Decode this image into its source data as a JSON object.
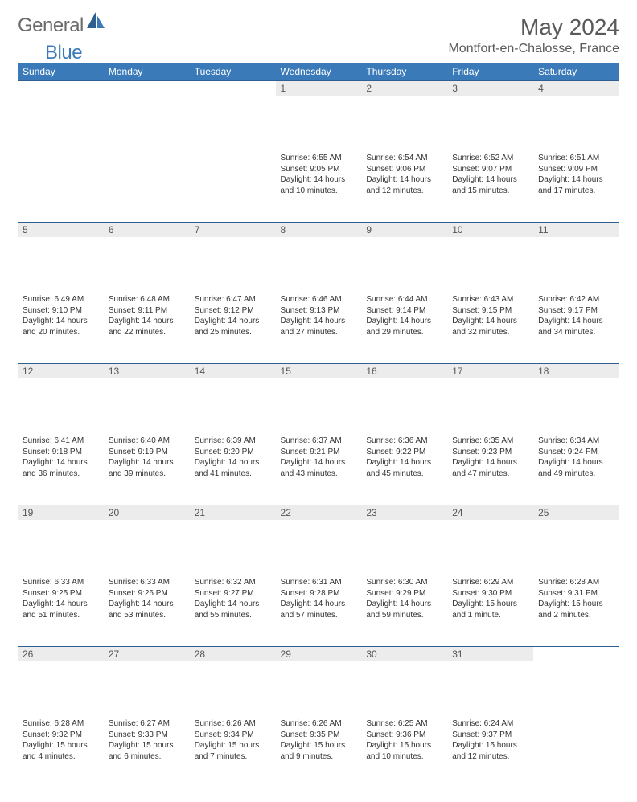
{
  "logo": {
    "general": "General",
    "blue": "Blue"
  },
  "title": "May 2024",
  "location": "Montfort-en-Chalosse, France",
  "colors": {
    "header_bg": "#3a7ab8",
    "header_text": "#ffffff",
    "daynum_bg": "#ececec",
    "border": "#2f5f8f",
    "title_color": "#5a5a5a",
    "body_text": "#333333"
  },
  "weekdays": [
    "Sunday",
    "Monday",
    "Tuesday",
    "Wednesday",
    "Thursday",
    "Friday",
    "Saturday"
  ],
  "weeks": [
    [
      {
        "n": "",
        "sr": "",
        "ss": "",
        "dl": ""
      },
      {
        "n": "",
        "sr": "",
        "ss": "",
        "dl": ""
      },
      {
        "n": "",
        "sr": "",
        "ss": "",
        "dl": ""
      },
      {
        "n": "1",
        "sr": "Sunrise: 6:55 AM",
        "ss": "Sunset: 9:05 PM",
        "dl": "Daylight: 14 hours and 10 minutes."
      },
      {
        "n": "2",
        "sr": "Sunrise: 6:54 AM",
        "ss": "Sunset: 9:06 PM",
        "dl": "Daylight: 14 hours and 12 minutes."
      },
      {
        "n": "3",
        "sr": "Sunrise: 6:52 AM",
        "ss": "Sunset: 9:07 PM",
        "dl": "Daylight: 14 hours and 15 minutes."
      },
      {
        "n": "4",
        "sr": "Sunrise: 6:51 AM",
        "ss": "Sunset: 9:09 PM",
        "dl": "Daylight: 14 hours and 17 minutes."
      }
    ],
    [
      {
        "n": "5",
        "sr": "Sunrise: 6:49 AM",
        "ss": "Sunset: 9:10 PM",
        "dl": "Daylight: 14 hours and 20 minutes."
      },
      {
        "n": "6",
        "sr": "Sunrise: 6:48 AM",
        "ss": "Sunset: 9:11 PM",
        "dl": "Daylight: 14 hours and 22 minutes."
      },
      {
        "n": "7",
        "sr": "Sunrise: 6:47 AM",
        "ss": "Sunset: 9:12 PM",
        "dl": "Daylight: 14 hours and 25 minutes."
      },
      {
        "n": "8",
        "sr": "Sunrise: 6:46 AM",
        "ss": "Sunset: 9:13 PM",
        "dl": "Daylight: 14 hours and 27 minutes."
      },
      {
        "n": "9",
        "sr": "Sunrise: 6:44 AM",
        "ss": "Sunset: 9:14 PM",
        "dl": "Daylight: 14 hours and 29 minutes."
      },
      {
        "n": "10",
        "sr": "Sunrise: 6:43 AM",
        "ss": "Sunset: 9:15 PM",
        "dl": "Daylight: 14 hours and 32 minutes."
      },
      {
        "n": "11",
        "sr": "Sunrise: 6:42 AM",
        "ss": "Sunset: 9:17 PM",
        "dl": "Daylight: 14 hours and 34 minutes."
      }
    ],
    [
      {
        "n": "12",
        "sr": "Sunrise: 6:41 AM",
        "ss": "Sunset: 9:18 PM",
        "dl": "Daylight: 14 hours and 36 minutes."
      },
      {
        "n": "13",
        "sr": "Sunrise: 6:40 AM",
        "ss": "Sunset: 9:19 PM",
        "dl": "Daylight: 14 hours and 39 minutes."
      },
      {
        "n": "14",
        "sr": "Sunrise: 6:39 AM",
        "ss": "Sunset: 9:20 PM",
        "dl": "Daylight: 14 hours and 41 minutes."
      },
      {
        "n": "15",
        "sr": "Sunrise: 6:37 AM",
        "ss": "Sunset: 9:21 PM",
        "dl": "Daylight: 14 hours and 43 minutes."
      },
      {
        "n": "16",
        "sr": "Sunrise: 6:36 AM",
        "ss": "Sunset: 9:22 PM",
        "dl": "Daylight: 14 hours and 45 minutes."
      },
      {
        "n": "17",
        "sr": "Sunrise: 6:35 AM",
        "ss": "Sunset: 9:23 PM",
        "dl": "Daylight: 14 hours and 47 minutes."
      },
      {
        "n": "18",
        "sr": "Sunrise: 6:34 AM",
        "ss": "Sunset: 9:24 PM",
        "dl": "Daylight: 14 hours and 49 minutes."
      }
    ],
    [
      {
        "n": "19",
        "sr": "Sunrise: 6:33 AM",
        "ss": "Sunset: 9:25 PM",
        "dl": "Daylight: 14 hours and 51 minutes."
      },
      {
        "n": "20",
        "sr": "Sunrise: 6:33 AM",
        "ss": "Sunset: 9:26 PM",
        "dl": "Daylight: 14 hours and 53 minutes."
      },
      {
        "n": "21",
        "sr": "Sunrise: 6:32 AM",
        "ss": "Sunset: 9:27 PM",
        "dl": "Daylight: 14 hours and 55 minutes."
      },
      {
        "n": "22",
        "sr": "Sunrise: 6:31 AM",
        "ss": "Sunset: 9:28 PM",
        "dl": "Daylight: 14 hours and 57 minutes."
      },
      {
        "n": "23",
        "sr": "Sunrise: 6:30 AM",
        "ss": "Sunset: 9:29 PM",
        "dl": "Daylight: 14 hours and 59 minutes."
      },
      {
        "n": "24",
        "sr": "Sunrise: 6:29 AM",
        "ss": "Sunset: 9:30 PM",
        "dl": "Daylight: 15 hours and 1 minute."
      },
      {
        "n": "25",
        "sr": "Sunrise: 6:28 AM",
        "ss": "Sunset: 9:31 PM",
        "dl": "Daylight: 15 hours and 2 minutes."
      }
    ],
    [
      {
        "n": "26",
        "sr": "Sunrise: 6:28 AM",
        "ss": "Sunset: 9:32 PM",
        "dl": "Daylight: 15 hours and 4 minutes."
      },
      {
        "n": "27",
        "sr": "Sunrise: 6:27 AM",
        "ss": "Sunset: 9:33 PM",
        "dl": "Daylight: 15 hours and 6 minutes."
      },
      {
        "n": "28",
        "sr": "Sunrise: 6:26 AM",
        "ss": "Sunset: 9:34 PM",
        "dl": "Daylight: 15 hours and 7 minutes."
      },
      {
        "n": "29",
        "sr": "Sunrise: 6:26 AM",
        "ss": "Sunset: 9:35 PM",
        "dl": "Daylight: 15 hours and 9 minutes."
      },
      {
        "n": "30",
        "sr": "Sunrise: 6:25 AM",
        "ss": "Sunset: 9:36 PM",
        "dl": "Daylight: 15 hours and 10 minutes."
      },
      {
        "n": "31",
        "sr": "Sunrise: 6:24 AM",
        "ss": "Sunset: 9:37 PM",
        "dl": "Daylight: 15 hours and 12 minutes."
      },
      {
        "n": "",
        "sr": "",
        "ss": "",
        "dl": ""
      }
    ]
  ]
}
